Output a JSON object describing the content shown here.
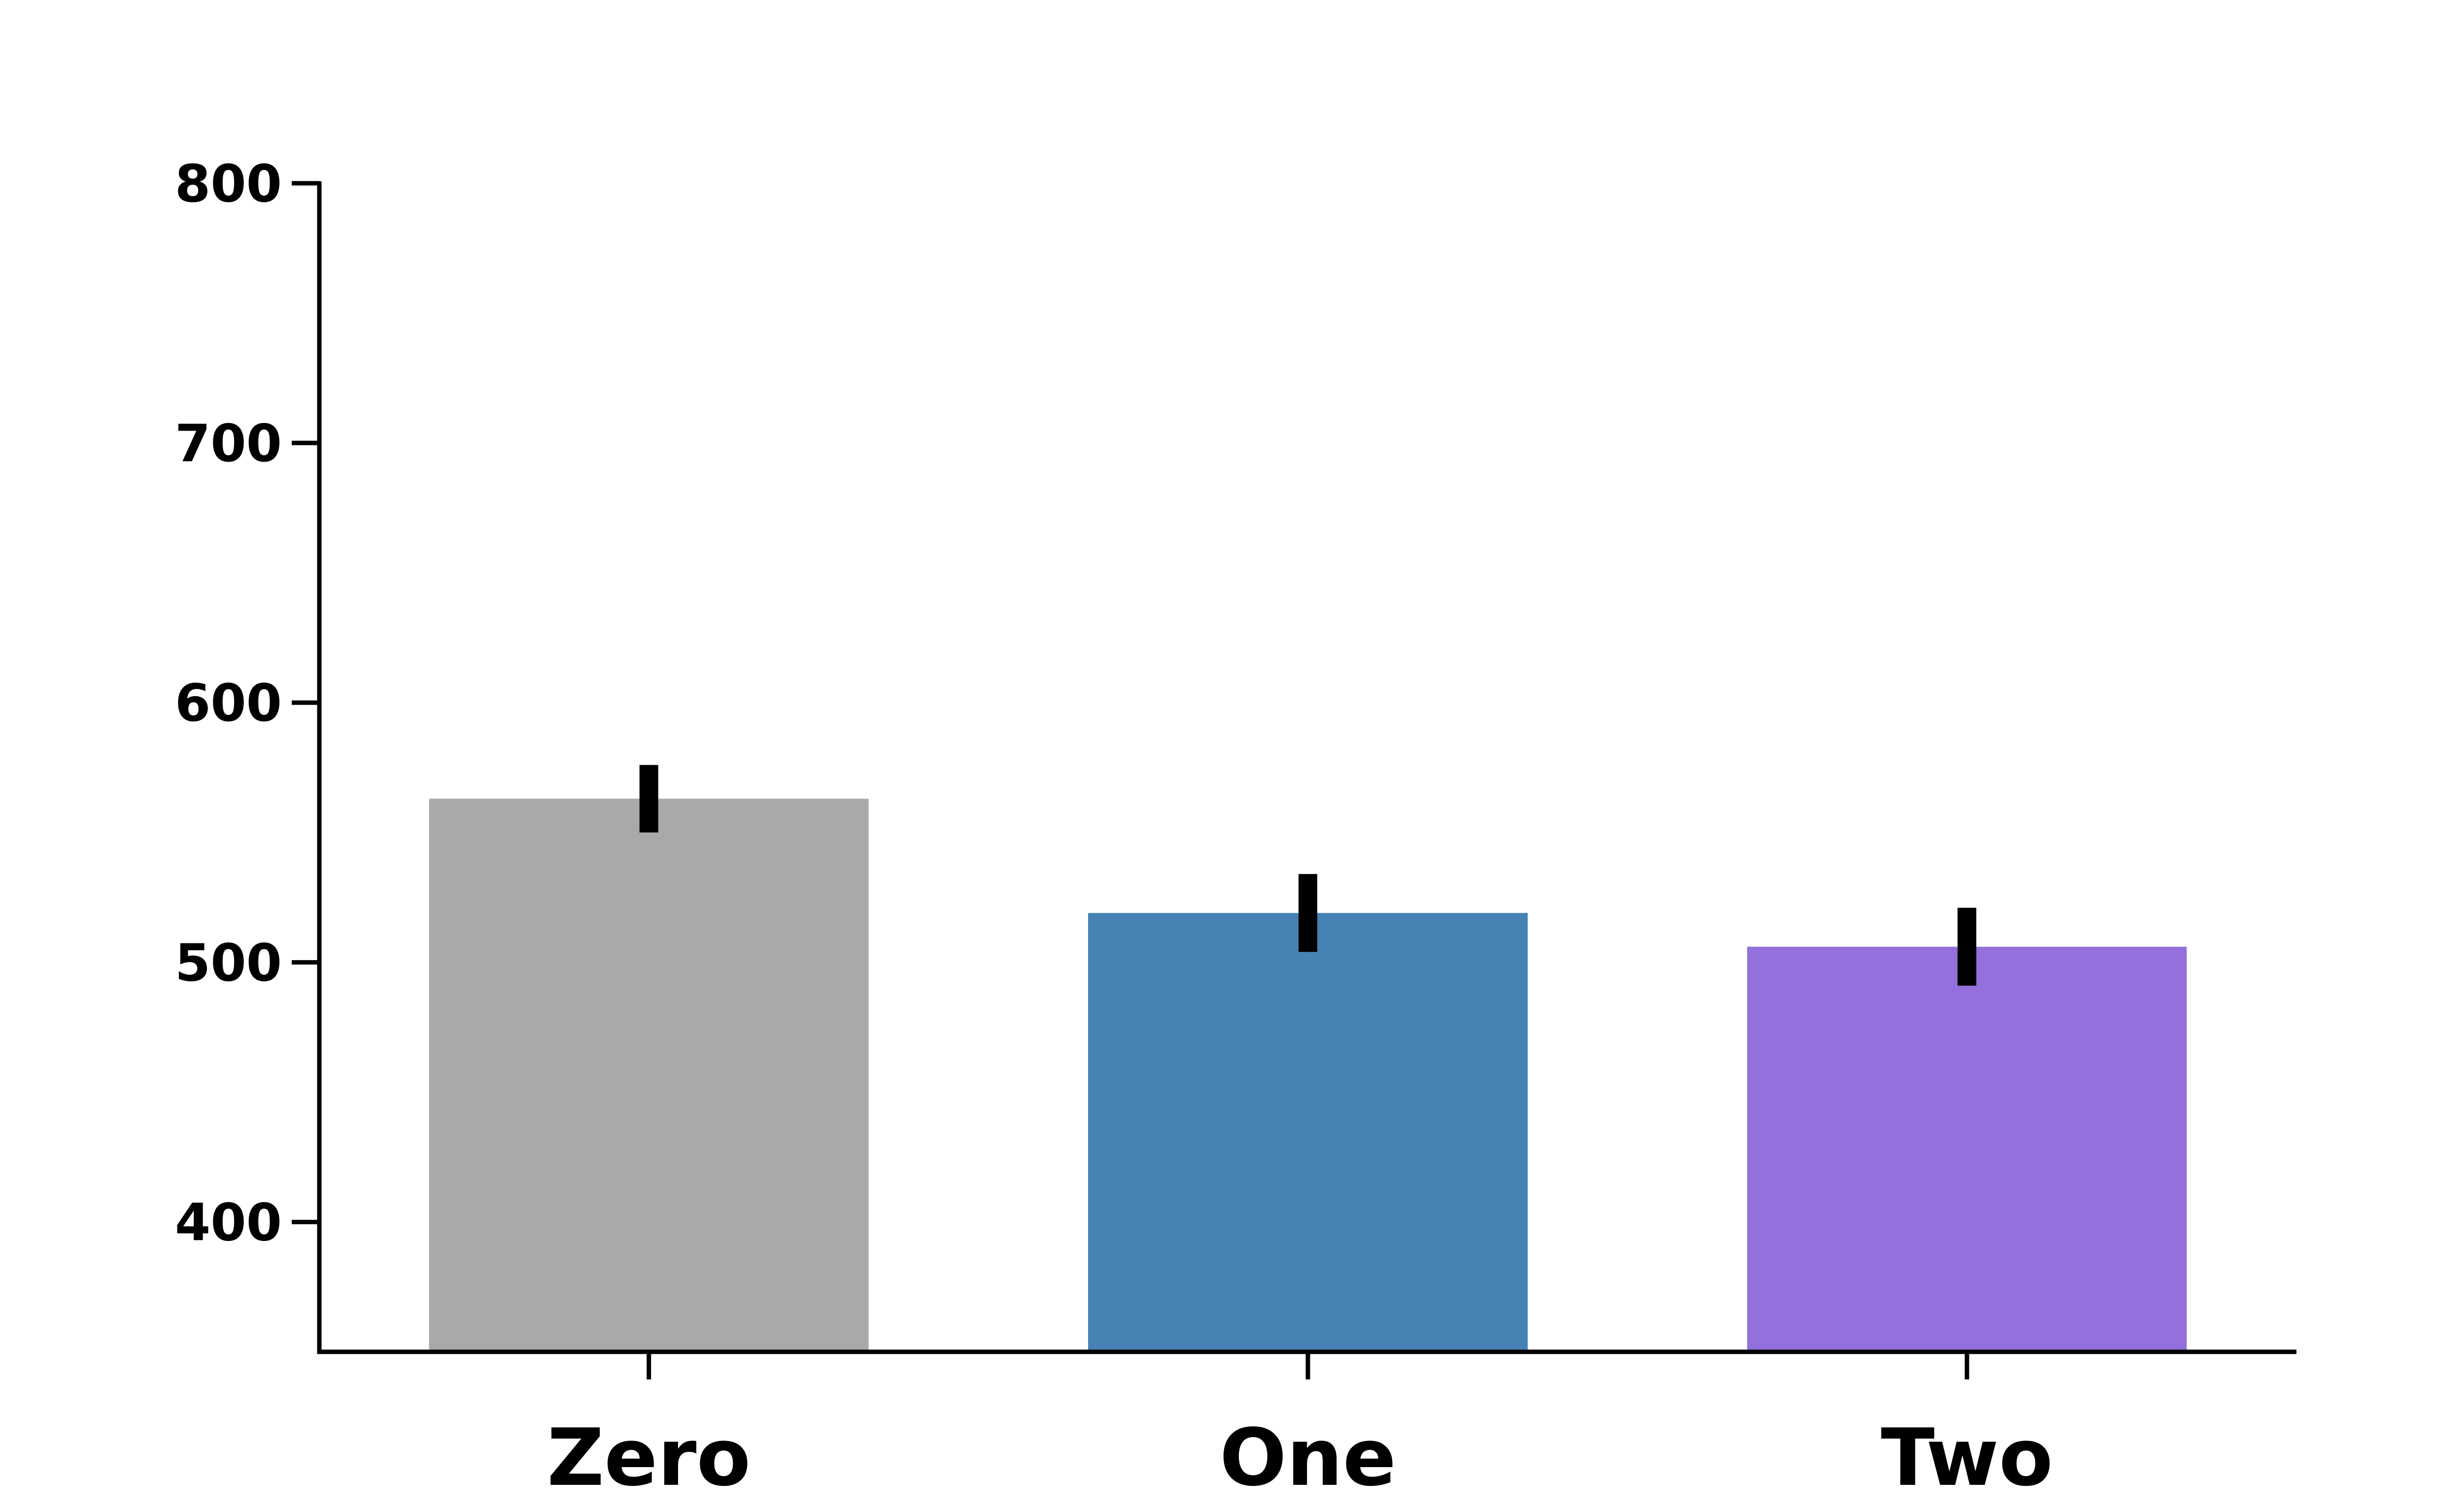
{
  "chart_data": {
    "type": "bar",
    "title": "",
    "xlabel": "",
    "ylabel": "",
    "categories": [
      "Zero",
      "One",
      "Two"
    ],
    "values": [
      563,
      519,
      506
    ],
    "error_low": [
      550,
      504,
      491
    ],
    "error_high": [
      576,
      534,
      521
    ],
    "colors": [
      "#a9a9a9",
      "#4682b4",
      "#9370db"
    ],
    "ylim": [
      350,
      800
    ],
    "yticks": [
      400,
      500,
      600,
      700,
      800
    ],
    "ytick_labels": [
      "400",
      "500",
      "600",
      "700",
      "800"
    ],
    "grid": false,
    "legend": "none"
  }
}
